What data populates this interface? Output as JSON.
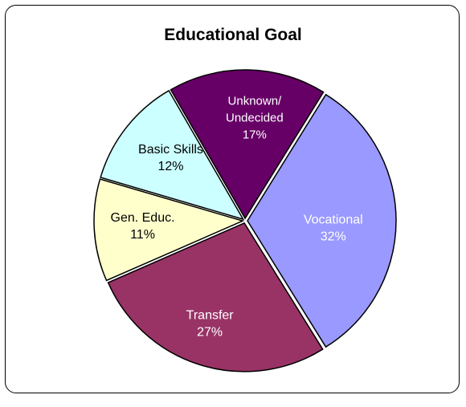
{
  "chart_data": {
    "type": "pie",
    "title": "Educational Goal",
    "slices": [
      {
        "lines": [
          "Unknown/",
          "Undecided"
        ],
        "value": 17,
        "value_label": "17%",
        "color": "#660066",
        "text_color": "#ffffff"
      },
      {
        "lines": [
          "Vocational"
        ],
        "value": 32,
        "value_label": "32%",
        "color": "#9999ff",
        "text_color": "#ffffff"
      },
      {
        "lines": [
          "Transfer"
        ],
        "value": 27,
        "value_label": "27%",
        "color": "#993366",
        "text_color": "#ffffff"
      },
      {
        "lines": [
          "Gen. Educ."
        ],
        "value": 11,
        "value_label": "11%",
        "color": "#ffffcc",
        "text_color": "#000000"
      },
      {
        "lines": [
          "Basic Skills"
        ],
        "value": 12,
        "value_label": "12%",
        "color": "#ccffff",
        "text_color": "#000000"
      }
    ],
    "colors": {
      "border": "#000000",
      "slice_outline": "#000000"
    }
  }
}
